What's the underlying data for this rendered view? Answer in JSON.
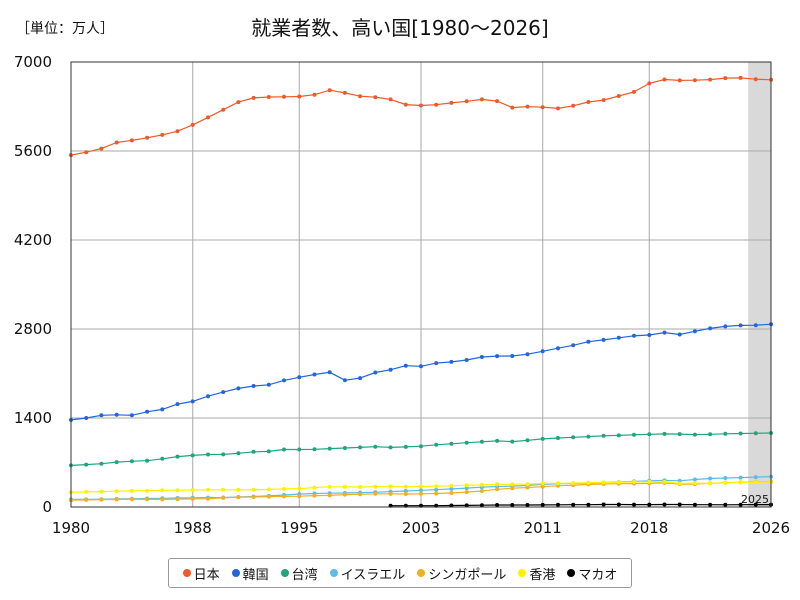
{
  "unit_label": "［単位：万人］",
  "chart_data": {
    "type": "line",
    "title": "就業者数、高い国[1980～2026]",
    "xlabel": "",
    "ylabel": "",
    "xlim": [
      1980,
      2026
    ],
    "ylim": [
      0,
      7000
    ],
    "x_ticks": [
      "1980",
      "1988",
      "1995",
      "2003",
      "2011",
      "2018",
      "2026"
    ],
    "y_ticks": [
      "0",
      "1400",
      "2800",
      "4200",
      "5600",
      "7000"
    ],
    "grid": true,
    "legend_position": "bottom",
    "forecast_start": 2025,
    "forecast_label": "2025",
    "series": [
      {
        "name": "日本",
        "color": "#f05a28",
        "start_year": 1980,
        "values": [
          5536,
          5581,
          5638,
          5733,
          5766,
          5807,
          5853,
          5911,
          6011,
          6128,
          6249,
          6369,
          6436,
          6450,
          6453,
          6457,
          6486,
          6557,
          6514,
          6462,
          6446,
          6412,
          6330,
          6316,
          6329,
          6356,
          6382,
          6412,
          6385,
          6282,
          6298,
          6289,
          6270,
          6311,
          6371,
          6401,
          6465,
          6530,
          6664,
          6724,
          6710,
          6713,
          6723,
          6747,
          6750,
          6730,
          6720
        ]
      },
      {
        "name": "韓国",
        "color": "#2266dd",
        "start_year": 1980,
        "values": [
          1370,
          1400,
          1442,
          1451,
          1442,
          1497,
          1535,
          1618,
          1661,
          1743,
          1808,
          1866,
          1903,
          1922,
          1991,
          2041,
          2085,
          2119,
          1994,
          2027,
          2116,
          2160,
          2223,
          2214,
          2263,
          2282,
          2313,
          2360,
          2374,
          2375,
          2403,
          2450,
          2498,
          2544,
          2601,
          2629,
          2662,
          2693,
          2705,
          2743,
          2714,
          2764,
          2809,
          2841,
          2857,
          2860,
          2875
        ]
      },
      {
        "name": "台湾",
        "color": "#1fa67a",
        "start_year": 1980,
        "values": [
          655,
          667,
          681,
          707,
          720,
          729,
          758,
          793,
          811,
          826,
          828,
          844,
          868,
          875,
          905,
          904,
          907,
          918,
          928,
          937,
          949,
          938,
          945,
          957,
          979,
          994,
          1011,
          1025,
          1040,
          1028,
          1049,
          1071,
          1086,
          1097,
          1108,
          1120,
          1127,
          1135,
          1143,
          1150,
          1146,
          1139,
          1144,
          1151,
          1156,
          1160,
          1164
        ]
      },
      {
        "name": "イスラエル",
        "color": "#5bbcec",
        "start_year": 1980,
        "values": [
          119,
          120,
          123,
          127,
          130,
          134,
          137,
          141,
          145,
          148,
          149,
          157,
          165,
          174,
          188,
          203,
          213,
          217,
          221,
          226,
          232,
          242,
          251,
          262,
          272,
          284,
          297,
          311,
          322,
          328,
          340,
          356,
          365,
          372,
          376,
          386,
          394,
          402,
          412,
          419,
          412,
          433,
          449,
          456,
          463,
          470,
          478
        ]
      },
      {
        "name": "シンガポール",
        "color": "#f0b020",
        "start_year": 1980,
        "values": [
          107,
          111,
          116,
          120,
          122,
          120,
          120,
          122,
          127,
          131,
          143,
          154,
          158,
          164,
          167,
          170,
          180,
          183,
          195,
          199,
          207,
          206,
          205,
          207,
          212,
          221,
          235,
          252,
          278,
          295,
          307,
          320,
          334,
          345,
          355,
          362,
          367,
          368,
          372,
          379,
          361,
          361,
          373,
          384,
          389,
          395,
          400
        ]
      },
      {
        "name": "香港",
        "color": "#fff200",
        "start_year": 1980,
        "values": [
          232,
          238,
          242,
          248,
          254,
          256,
          262,
          265,
          267,
          270,
          271,
          269,
          272,
          276,
          284,
          290,
          305,
          318,
          318,
          314,
          320,
          323,
          318,
          322,
          327,
          333,
          343,
          347,
          357,
          358,
          361,
          371,
          373,
          376,
          381,
          387,
          389,
          394,
          396,
          395,
          371,
          376,
          371,
          380,
          385,
          390,
          395
        ]
      },
      {
        "name": "マカオ",
        "color": "#000000",
        "start_year": 2001,
        "values": [
          21,
          21,
          21,
          21,
          24,
          25,
          28,
          32,
          32,
          32,
          33,
          34,
          36,
          36,
          39,
          39,
          38,
          38,
          39,
          39,
          36,
          36,
          34,
          36,
          37,
          38
        ]
      }
    ]
  }
}
